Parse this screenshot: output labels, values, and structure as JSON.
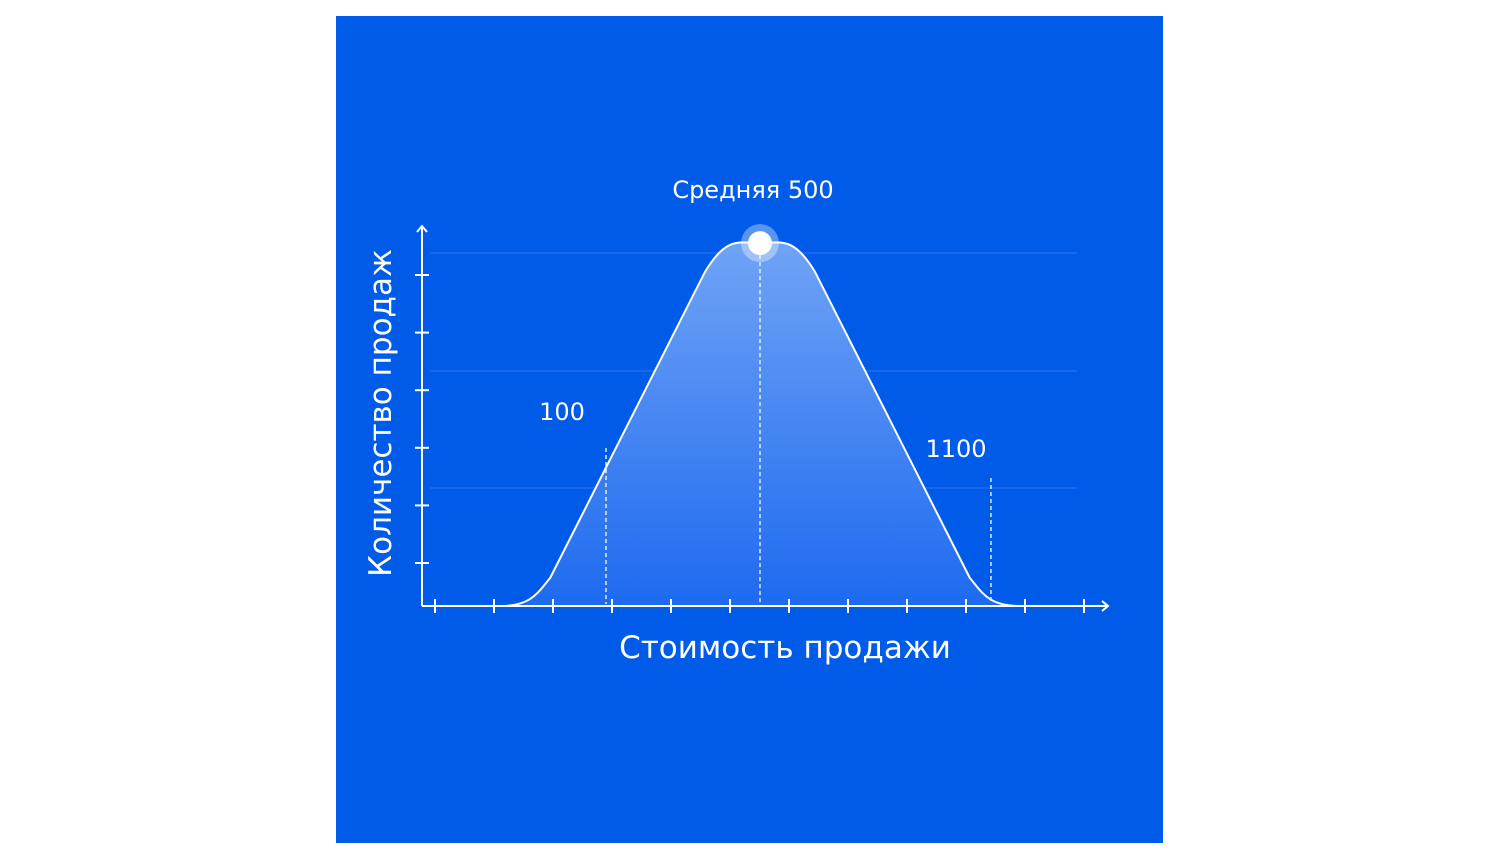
{
  "colors": {
    "background": "#005BE8",
    "line": "#FFFFFF",
    "fill_top": "#6FA3F5",
    "fill_bottom": "#1E6AF0"
  },
  "chart_data": {
    "type": "area",
    "title": "",
    "xlabel": "Стоимость продажи",
    "ylabel": "Количество продаж",
    "xlim": [
      -378,
      1404
    ],
    "ylim": [
      0,
      100
    ],
    "x_tick_count": 12,
    "y_tick_count": 6,
    "grid": "horizontal, faint",
    "curve": [
      [
        -175,
        0
      ],
      [
        -45,
        7.4
      ],
      [
        357,
        87.9
      ],
      [
        500,
        95.5
      ],
      [
        643,
        87.9
      ],
      [
        1045,
        7.4
      ],
      [
        1175,
        0
      ]
    ],
    "annotations": [
      {
        "label": "100",
        "x": 100
      },
      {
        "label": "Средняя 500",
        "x": 500,
        "peak": true
      },
      {
        "label": "1100",
        "x": 1100
      }
    ]
  }
}
